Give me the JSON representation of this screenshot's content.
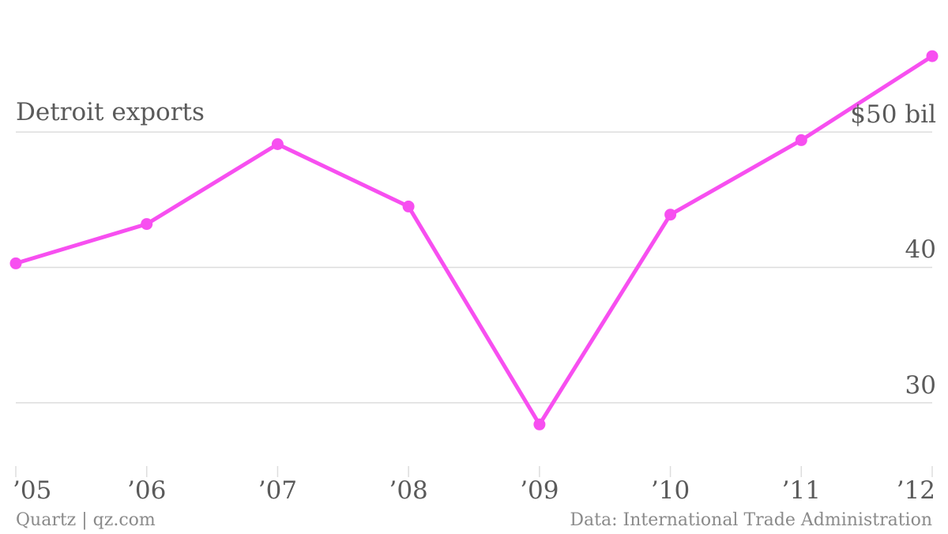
{
  "chart_data": {
    "type": "line",
    "title": "Detroit exports",
    "x": [
      "’05",
      "’06",
      "’07",
      "’08",
      "’09",
      "’10",
      "’11",
      "’12"
    ],
    "series": [
      {
        "values": [
          40.3,
          43.2,
          49.1,
          44.5,
          28.4,
          43.9,
          49.4,
          55.6
        ],
        "color": "#f74ff0"
      }
    ],
    "y_ticks": [
      {
        "value": 30,
        "label": "30"
      },
      {
        "value": 40,
        "label": "40"
      },
      {
        "value": 50,
        "label": "$50 bil"
      }
    ],
    "ylim": [
      25.5,
      58
    ],
    "grid": true,
    "gridline_color": "#dddddd",
    "text_color": "#5a5a5a"
  },
  "footer": {
    "source_left": "Quartz | qz.com",
    "source_right": "Data: International Trade Administration"
  }
}
